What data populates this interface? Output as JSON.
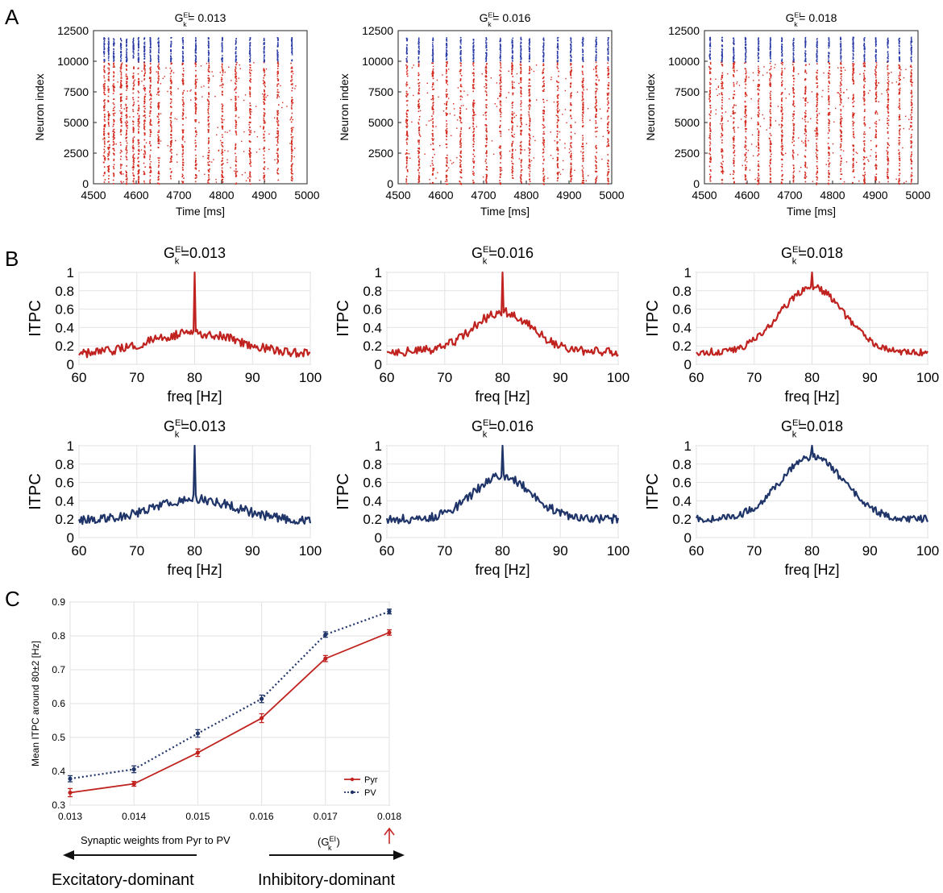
{
  "panel_letters": [
    "A",
    "B",
    "C"
  ],
  "colors": {
    "pyr": "#c0231f",
    "pv": "#1f3468",
    "raster_exc": "#d42a1f",
    "raster_inh": "#2a3aa6",
    "grid": "#e2e2e2",
    "axis": "#222222",
    "arrow_red": "#c62828"
  },
  "chart_data": [
    {
      "panel": "A",
      "type": "scatter",
      "name": "raster-1",
      "title_prefix": "G",
      "title_sup": "EI",
      "title_sub": "k",
      "title_value": "= 0.013",
      "xlabel": "Time [ms]",
      "ylabel": "Neuron index",
      "xlim": [
        4500,
        5000
      ],
      "ylim": [
        0,
        12500
      ],
      "xticks": [
        "4500",
        "4600",
        "4700",
        "4800",
        "4900",
        "5000"
      ],
      "yticks": [
        "0",
        "2500",
        "5000",
        "7500",
        "10000",
        "12500"
      ],
      "series": [
        {
          "name": "excitatory",
          "index_range": [
            0,
            10000
          ]
        },
        {
          "name": "inhibitory",
          "index_range": [
            10000,
            12000
          ]
        }
      ],
      "burst_times_ms": [
        4524,
        4534,
        4546,
        4563,
        4576,
        4592,
        4604,
        4618,
        4632,
        4651,
        4680,
        4708,
        4738,
        4768,
        4800,
        4832,
        4865,
        4898,
        4930,
        4963
      ]
    },
    {
      "panel": "A",
      "type": "scatter",
      "name": "raster-2",
      "title_prefix": "G",
      "title_sup": "EI",
      "title_sub": "k",
      "title_value": "= 0.016",
      "xlabel": "Time [ms]",
      "ylabel": "Neuron index",
      "xlim": [
        4500,
        5000
      ],
      "ylim": [
        0,
        12500
      ],
      "xticks": [
        "4500",
        "4600",
        "4700",
        "4800",
        "4900",
        "5000"
      ],
      "yticks": [
        "0",
        "2500",
        "5000",
        "7500",
        "10000",
        "12500"
      ],
      "series": [
        {
          "name": "excitatory",
          "index_range": [
            0,
            10000
          ]
        },
        {
          "name": "inhibitory",
          "index_range": [
            10000,
            12000
          ]
        }
      ],
      "burst_times_ms": [
        4519,
        4547,
        4580,
        4612,
        4645,
        4675,
        4705,
        4738,
        4766,
        4786,
        4806,
        4839,
        4872,
        4903,
        4931,
        4962,
        4990
      ]
    },
    {
      "panel": "A",
      "type": "scatter",
      "name": "raster-3",
      "title_prefix": "G",
      "title_sup": "EI",
      "title_sub": "k",
      "title_value": "= 0.018",
      "xlabel": "Time [ms]",
      "ylabel": "Neuron index",
      "xlim": [
        4500,
        5000
      ],
      "ylim": [
        0,
        12500
      ],
      "xticks": [
        "4500",
        "4600",
        "4700",
        "4800",
        "4900",
        "5000"
      ],
      "yticks": [
        "0",
        "2500",
        "5000",
        "7500",
        "10000",
        "12500"
      ],
      "series": [
        {
          "name": "excitatory",
          "index_range": [
            0,
            10000
          ]
        },
        {
          "name": "inhibitory",
          "index_range": [
            10000,
            12000
          ]
        }
      ],
      "burst_times_ms": [
        4512,
        4540,
        4567,
        4595,
        4625,
        4653,
        4680,
        4707,
        4735,
        4762,
        4790,
        4818,
        4847,
        4873,
        4900,
        4928,
        4955,
        4983
      ]
    },
    {
      "panel": "B",
      "type": "line",
      "name": "itpc-pyr-0013",
      "series_color": "pyr",
      "title_prefix": "G",
      "title_sup": "EI",
      "title_sub": "k",
      "title_value": "=0.013",
      "xlabel": "freq [Hz]",
      "ylabel": "ITPC",
      "xlim": [
        60,
        100
      ],
      "ylim": [
        0,
        1
      ],
      "xticks": [
        "60",
        "70",
        "80",
        "90",
        "100"
      ],
      "yticks": [
        "0",
        "0.2",
        "0.4",
        "0.6",
        "0.8",
        "1"
      ],
      "peak_freq": 80,
      "peak_value": 1.0,
      "bump_value": 0.34,
      "bump_width_hz": 8,
      "floor_value": 0.1,
      "noise": 0.05
    },
    {
      "panel": "B",
      "type": "line",
      "name": "itpc-pyr-0016",
      "series_color": "pyr",
      "title_prefix": "G",
      "title_sup": "EI",
      "title_sub": "k",
      "title_value": "=0.016",
      "xlabel": "freq [Hz]",
      "ylabel": "ITPC",
      "xlim": [
        60,
        100
      ],
      "ylim": [
        0,
        1
      ],
      "xticks": [
        "60",
        "70",
        "80",
        "90",
        "100"
      ],
      "yticks": [
        "0",
        "0.2",
        "0.4",
        "0.6",
        "0.8",
        "1"
      ],
      "peak_freq": 80,
      "peak_value": 1.0,
      "bump_value": 0.57,
      "bump_width_hz": 5,
      "floor_value": 0.14,
      "noise": 0.05
    },
    {
      "panel": "B",
      "type": "line",
      "name": "itpc-pyr-0018",
      "series_color": "pyr",
      "title_prefix": "G",
      "title_sup": "EI",
      "title_sub": "k",
      "title_value": "=0.018",
      "xlabel": "freq [Hz]",
      "ylabel": "ITPC",
      "xlim": [
        60,
        100
      ],
      "ylim": [
        0,
        1
      ],
      "xticks": [
        "60",
        "70",
        "80",
        "90",
        "100"
      ],
      "yticks": [
        "0",
        "0.2",
        "0.4",
        "0.6",
        "0.8",
        "1"
      ],
      "peak_freq": 80,
      "peak_value": 1.0,
      "bump_value": 0.84,
      "bump_width_hz": 5.5,
      "floor_value": 0.13,
      "noise": 0.04
    },
    {
      "panel": "B",
      "type": "line",
      "name": "itpc-pv-0013",
      "series_color": "pv",
      "title_prefix": "G",
      "title_sup": "EI",
      "title_sub": "k",
      "title_value": "=0.013",
      "xlabel": "freq [Hz]",
      "ylabel": "ITPC",
      "xlim": [
        60,
        100
      ],
      "ylim": [
        0,
        1
      ],
      "xticks": [
        "60",
        "70",
        "80",
        "90",
        "100"
      ],
      "yticks": [
        "0",
        "0.2",
        "0.4",
        "0.6",
        "0.8",
        "1"
      ],
      "peak_freq": 80,
      "peak_value": 1.0,
      "bump_value": 0.42,
      "bump_width_hz": 7,
      "floor_value": 0.19,
      "noise": 0.05
    },
    {
      "panel": "B",
      "type": "line",
      "name": "itpc-pv-0016",
      "series_color": "pv",
      "title_prefix": "G",
      "title_sup": "EI",
      "title_sub": "k",
      "title_value": "=0.016",
      "xlabel": "freq [Hz]",
      "ylabel": "ITPC",
      "xlim": [
        60,
        100
      ],
      "ylim": [
        0,
        1
      ],
      "xticks": [
        "60",
        "70",
        "80",
        "90",
        "100"
      ],
      "yticks": [
        "0",
        "0.2",
        "0.4",
        "0.6",
        "0.8",
        "1"
      ],
      "peak_freq": 80,
      "peak_value": 1.0,
      "bump_value": 0.67,
      "bump_width_hz": 5,
      "floor_value": 0.2,
      "noise": 0.05
    },
    {
      "panel": "B",
      "type": "line",
      "name": "itpc-pv-0018",
      "series_color": "pv",
      "title_prefix": "G",
      "title_sup": "EI",
      "title_sub": "k",
      "title_value": "=0.018",
      "xlabel": "freq [Hz]",
      "ylabel": "ITPC",
      "xlim": [
        60,
        100
      ],
      "ylim": [
        0,
        1
      ],
      "xticks": [
        "60",
        "70",
        "80",
        "90",
        "100"
      ],
      "yticks": [
        "0",
        "0.2",
        "0.4",
        "0.6",
        "0.8",
        "1"
      ],
      "peak_freq": 80,
      "peak_value": 1.0,
      "bump_value": 0.88,
      "bump_width_hz": 5.5,
      "floor_value": 0.2,
      "noise": 0.04
    },
    {
      "panel": "C",
      "type": "line",
      "name": "mean-itpc",
      "xlabel": "Synaptic weights from Pyr to PV",
      "xlabel_suffix": "(G",
      "xlabel_suffix_sup": "EI",
      "xlabel_suffix_sub": "k",
      "xlabel_suffix_end": ")",
      "ylabel": "Mean ITPC around 80±2 [Hz]",
      "x": [
        0.013,
        0.014,
        0.015,
        0.016,
        0.017,
        0.018
      ],
      "xlim": [
        0.013,
        0.018
      ],
      "ylim": [
        0.3,
        0.9
      ],
      "xticks": [
        "0.013",
        "0.014",
        "0.015",
        "0.016",
        "0.017",
        "0.018"
      ],
      "yticks": [
        "0.3",
        "0.4",
        "0.5",
        "0.6",
        "0.7",
        "0.8",
        "0.9"
      ],
      "series": [
        {
          "name": "Pyr",
          "color": "pyr",
          "style": "solid",
          "values": [
            0.337,
            0.363,
            0.455,
            0.557,
            0.733,
            0.81
          ],
          "errors": [
            0.012,
            0.007,
            0.011,
            0.013,
            0.009,
            0.008
          ]
        },
        {
          "name": "PV",
          "color": "pv",
          "style": "dotted",
          "values": [
            0.378,
            0.406,
            0.512,
            0.614,
            0.804,
            0.872
          ],
          "errors": [
            0.009,
            0.01,
            0.011,
            0.011,
            0.008,
            0.007
          ]
        }
      ],
      "legend_position": "bottom-right"
    }
  ],
  "annotations": {
    "left_label": "Excitatory-dominant",
    "right_label": "Inhibitory-dominant"
  }
}
